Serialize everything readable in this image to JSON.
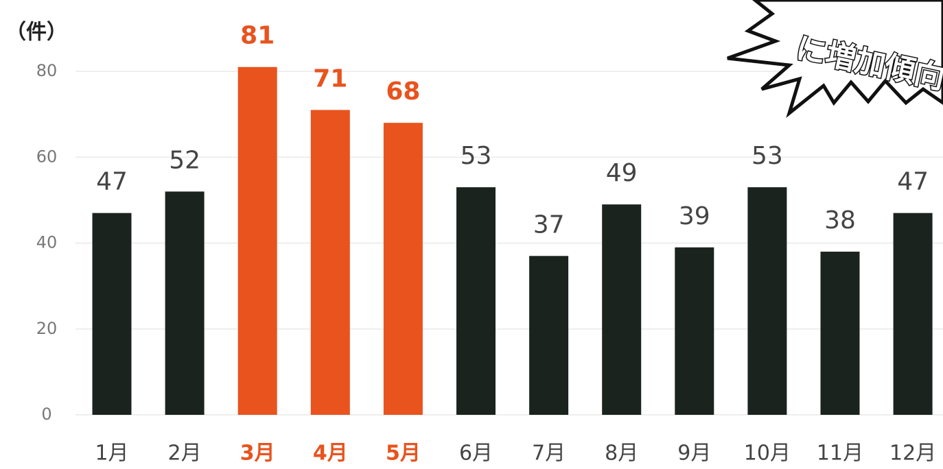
{
  "chart_data": {
    "type": "bar",
    "y_label": "（件）",
    "annotation": "に増加傾向",
    "categories": [
      "1月",
      "2月",
      "3月",
      "4月",
      "5月",
      "6月",
      "7月",
      "8月",
      "9月",
      "10月",
      "11月",
      "12月"
    ],
    "values": [
      47,
      52,
      81,
      71,
      68,
      53,
      37,
      49,
      39,
      53,
      38,
      47
    ],
    "colors": [
      "#1b231e",
      "#1b231e",
      "#e8531e",
      "#e8531e",
      "#e8531e",
      "#1b231e",
      "#1b231e",
      "#1b231e",
      "#1b231e",
      "#1b231e",
      "#1b231e",
      "#1b231e"
    ],
    "label_colors": [
      "#444444",
      "#444444",
      "#e8531e",
      "#e8531e",
      "#e8531e",
      "#444444",
      "#444444",
      "#444444",
      "#444444",
      "#444444",
      "#444444",
      "#444444"
    ],
    "ylim": [
      0,
      80
    ],
    "yticks": [
      0,
      20,
      40,
      60,
      80
    ],
    "grid": true
  }
}
